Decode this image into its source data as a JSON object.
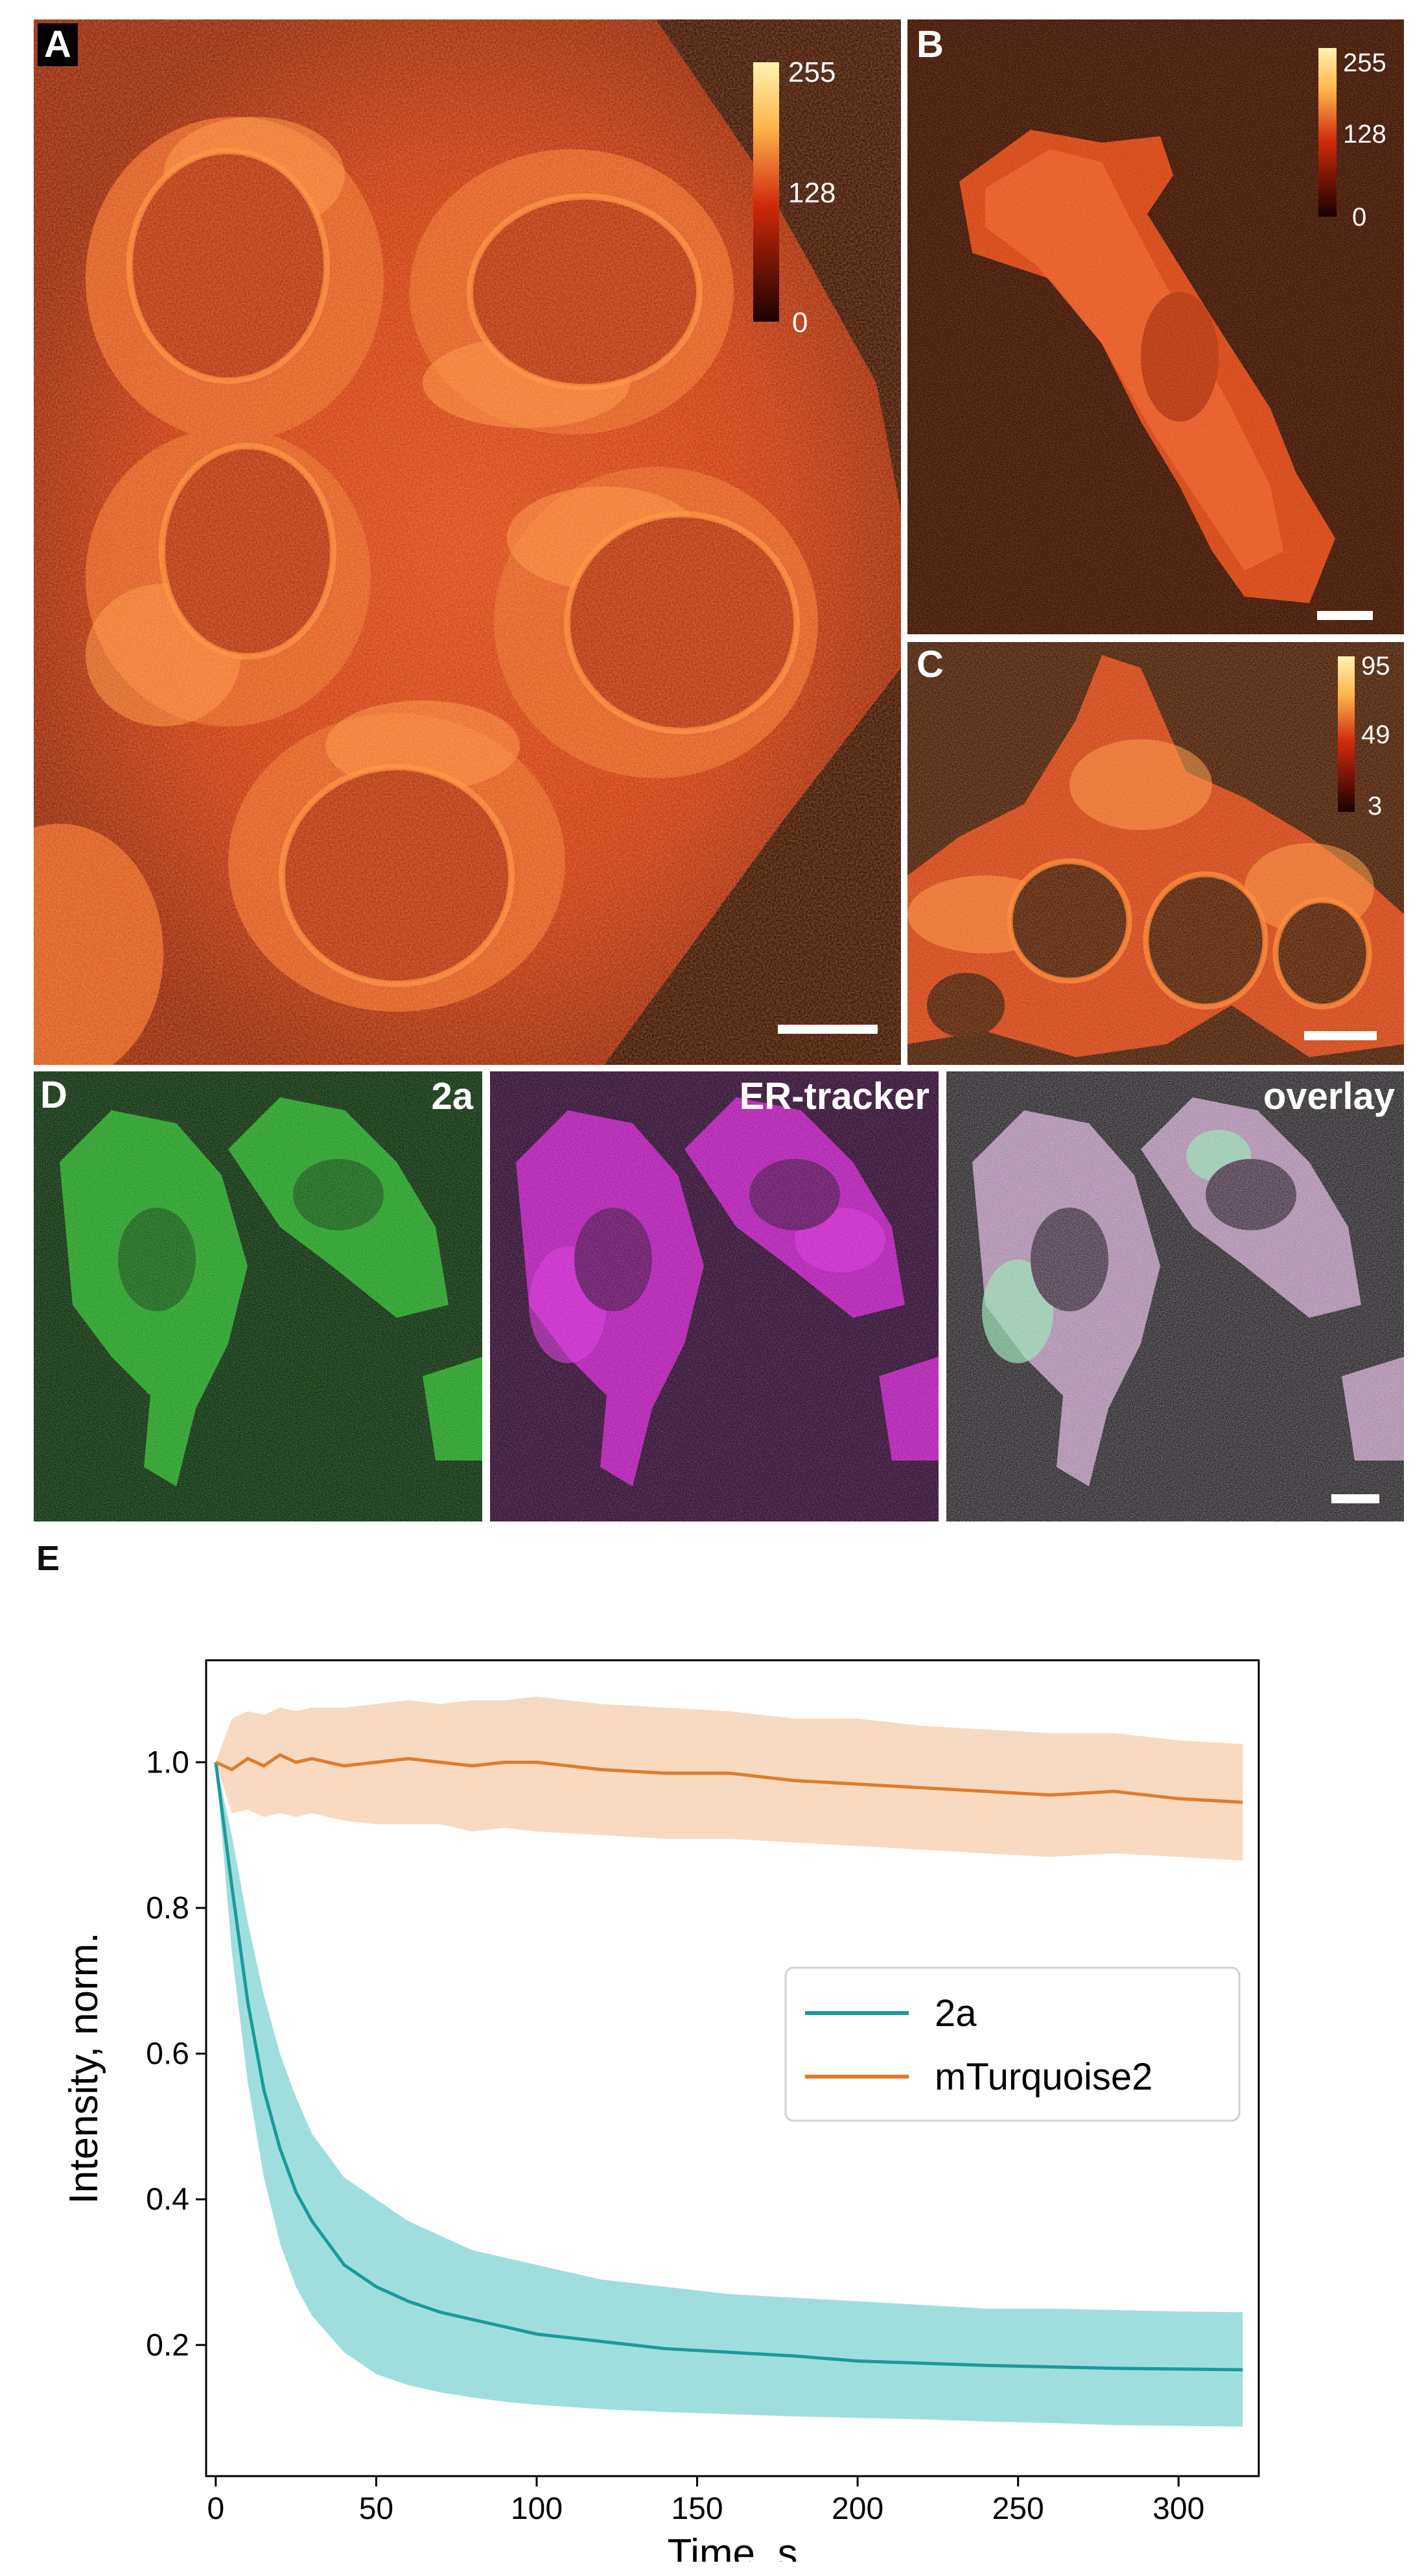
{
  "panels": {
    "A": {
      "label": "A",
      "colorbar_ticks": [
        "255",
        "128",
        "0"
      ]
    },
    "B": {
      "label": "B",
      "colorbar_ticks": [
        "255",
        "128",
        "0"
      ]
    },
    "C": {
      "label": "C",
      "colorbar_ticks": [
        "95",
        "49",
        "3"
      ]
    },
    "D": {
      "label": "D",
      "channels": [
        "2a",
        "ER-tracker",
        "overlay"
      ]
    },
    "E": {
      "label": "E"
    }
  },
  "colors": {
    "hot_dark": "#2a0500",
    "hot_mid": "#c0280a",
    "hot_bright": "#ff9a3c",
    "green_channel": "#2ed12e",
    "magenta_channel": "#d21ed2",
    "series_2a": "#1a9a9a",
    "series_2a_band": "#8fd8d8",
    "series_mturquoise2": "#e07b2c",
    "series_mturquoise2_band": "#f6d3b6"
  },
  "chart_data": {
    "type": "line",
    "xlabel": "Time, s",
    "ylabel": "Intensity, norm.",
    "xlim": [
      -3,
      325
    ],
    "ylim": [
      0.02,
      1.14
    ],
    "xticks": [
      0,
      50,
      100,
      150,
      200,
      250,
      300
    ],
    "yticks": [
      0.2,
      0.4,
      0.6,
      0.8,
      1.0
    ],
    "ytick_labels": [
      "0.2",
      "0.4",
      "0.6",
      "0.8",
      "1.0"
    ],
    "legend_position": "center-right",
    "grid": false,
    "series": [
      {
        "name": "2a",
        "color": "#1a9a9a",
        "band_color": "#8fd8d8",
        "x": [
          0,
          5,
          10,
          15,
          20,
          25,
          30,
          40,
          50,
          60,
          70,
          80,
          90,
          100,
          120,
          140,
          160,
          180,
          200,
          220,
          240,
          260,
          280,
          300,
          320
        ],
        "y": [
          1.0,
          0.83,
          0.67,
          0.55,
          0.47,
          0.41,
          0.37,
          0.31,
          0.28,
          0.26,
          0.245,
          0.235,
          0.225,
          0.215,
          0.205,
          0.195,
          0.19,
          0.185,
          0.178,
          0.175,
          0.172,
          0.17,
          0.168,
          0.167,
          0.166
        ],
        "upper": [
          1.0,
          0.9,
          0.78,
          0.68,
          0.6,
          0.54,
          0.49,
          0.43,
          0.4,
          0.37,
          0.35,
          0.33,
          0.32,
          0.31,
          0.29,
          0.28,
          0.27,
          0.265,
          0.26,
          0.255,
          0.25,
          0.25,
          0.248,
          0.246,
          0.245
        ],
        "lower": [
          1.0,
          0.74,
          0.56,
          0.43,
          0.34,
          0.28,
          0.24,
          0.19,
          0.16,
          0.145,
          0.135,
          0.128,
          0.122,
          0.118,
          0.112,
          0.108,
          0.105,
          0.102,
          0.1,
          0.098,
          0.095,
          0.093,
          0.09,
          0.089,
          0.088
        ]
      },
      {
        "name": "mTurquoise2",
        "color": "#e07b2c",
        "band_color": "#f6d3b6",
        "x": [
          0,
          5,
          10,
          15,
          20,
          25,
          30,
          40,
          50,
          60,
          70,
          80,
          90,
          100,
          120,
          140,
          160,
          180,
          200,
          220,
          240,
          260,
          280,
          300,
          320
        ],
        "y": [
          1.0,
          0.99,
          1.005,
          0.995,
          1.01,
          1.0,
          1.005,
          0.995,
          1.0,
          1.005,
          1.0,
          0.995,
          1.0,
          1.0,
          0.99,
          0.985,
          0.985,
          0.975,
          0.97,
          0.965,
          0.96,
          0.955,
          0.96,
          0.95,
          0.945
        ],
        "upper": [
          1.0,
          1.06,
          1.07,
          1.065,
          1.075,
          1.07,
          1.075,
          1.075,
          1.08,
          1.085,
          1.08,
          1.085,
          1.085,
          1.09,
          1.08,
          1.075,
          1.07,
          1.06,
          1.06,
          1.05,
          1.045,
          1.04,
          1.04,
          1.03,
          1.025
        ],
        "lower": [
          1.0,
          0.93,
          0.935,
          0.925,
          0.93,
          0.925,
          0.93,
          0.92,
          0.915,
          0.915,
          0.915,
          0.905,
          0.91,
          0.905,
          0.9,
          0.895,
          0.895,
          0.89,
          0.885,
          0.88,
          0.875,
          0.87,
          0.875,
          0.87,
          0.865
        ]
      }
    ]
  }
}
